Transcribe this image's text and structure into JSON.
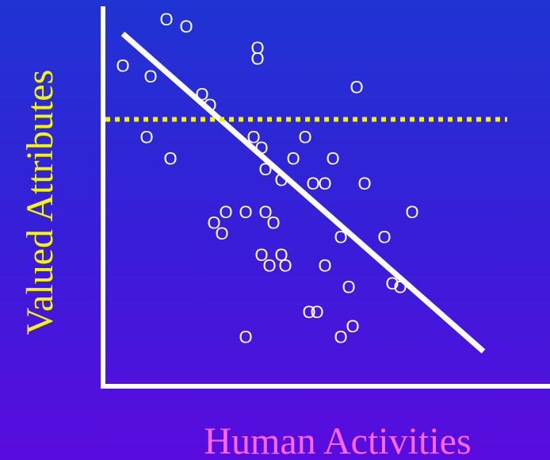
{
  "colors": {
    "background_top": "#1f34d2",
    "background_bottom": "#5a0cde",
    "axis": "#ffffff",
    "points": "#ffffff",
    "trend_line": "#ffffff",
    "threshold_line": "#f5f500",
    "ylabel": "#f5f500",
    "xlabel": "#ff66ff"
  },
  "chart_data": {
    "type": "scatter",
    "title": "",
    "xlabel": "Human Activities",
    "ylabel": "Valued Attributes",
    "xlim": [
      0,
      100
    ],
    "ylim": [
      0,
      100
    ],
    "grid": false,
    "marker": "O",
    "points": [
      [
        14,
        99
      ],
      [
        19,
        97
      ],
      [
        3,
        86
      ],
      [
        10,
        83
      ],
      [
        37,
        91
      ],
      [
        37,
        88
      ],
      [
        23,
        78
      ],
      [
        25,
        75
      ],
      [
        62,
        80
      ],
      [
        9,
        66
      ],
      [
        36,
        66
      ],
      [
        49,
        66
      ],
      [
        38,
        63
      ],
      [
        15,
        60
      ],
      [
        46,
        60
      ],
      [
        56,
        60
      ],
      [
        39,
        57
      ],
      [
        43,
        54
      ],
      [
        54,
        53
      ],
      [
        51,
        53
      ],
      [
        64,
        53
      ],
      [
        29,
        45
      ],
      [
        34,
        45
      ],
      [
        39,
        45
      ],
      [
        76,
        45
      ],
      [
        26,
        42
      ],
      [
        28,
        39
      ],
      [
        41,
        42
      ],
      [
        58,
        38
      ],
      [
        69,
        38
      ],
      [
        38,
        33
      ],
      [
        43,
        33
      ],
      [
        40,
        30
      ],
      [
        44,
        30
      ],
      [
        54,
        30
      ],
      [
        71,
        25
      ],
      [
        60,
        24
      ],
      [
        73,
        24
      ],
      [
        50,
        17
      ],
      [
        52,
        17
      ],
      [
        61,
        13
      ],
      [
        34,
        10
      ],
      [
        58,
        10
      ]
    ],
    "series": [
      {
        "type": "line",
        "style": "solid",
        "x": [
          3,
          94
        ],
        "y": [
          95,
          6
        ]
      },
      {
        "type": "line",
        "style": "dotted",
        "x": [
          0,
          100
        ],
        "y": [
          71,
          71
        ]
      }
    ]
  }
}
